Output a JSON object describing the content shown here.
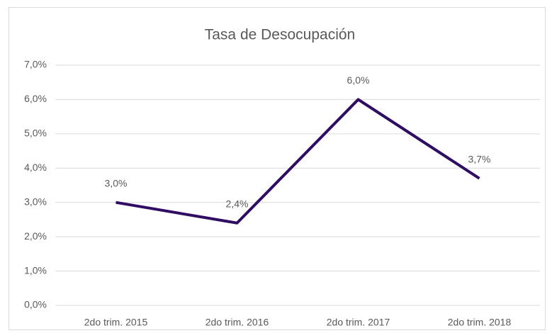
{
  "chart_data": {
    "type": "line",
    "title": "Tasa de Desocupación",
    "categories": [
      "2do trim. 2015",
      "2do trim. 2016",
      "2do trim. 2017",
      "2do trim. 2018"
    ],
    "values": [
      3.0,
      2.4,
      6.0,
      3.7
    ],
    "value_labels": [
      "3,0%",
      "2,4%",
      "6,0%",
      "3,7%"
    ],
    "color": "#2e0d63",
    "ylim": [
      0,
      7
    ],
    "yticks": [
      {
        "value": 0,
        "label": "0,0%"
      },
      {
        "value": 1,
        "label": "1,0%"
      },
      {
        "value": 2,
        "label": "2,0%"
      },
      {
        "value": 3,
        "label": "3,0%"
      },
      {
        "value": 4,
        "label": "4,0%"
      },
      {
        "value": 5,
        "label": "5,0%"
      },
      {
        "value": 6,
        "label": "6,0%"
      },
      {
        "value": 7,
        "label": "7,0%"
      }
    ],
    "grid": true
  }
}
